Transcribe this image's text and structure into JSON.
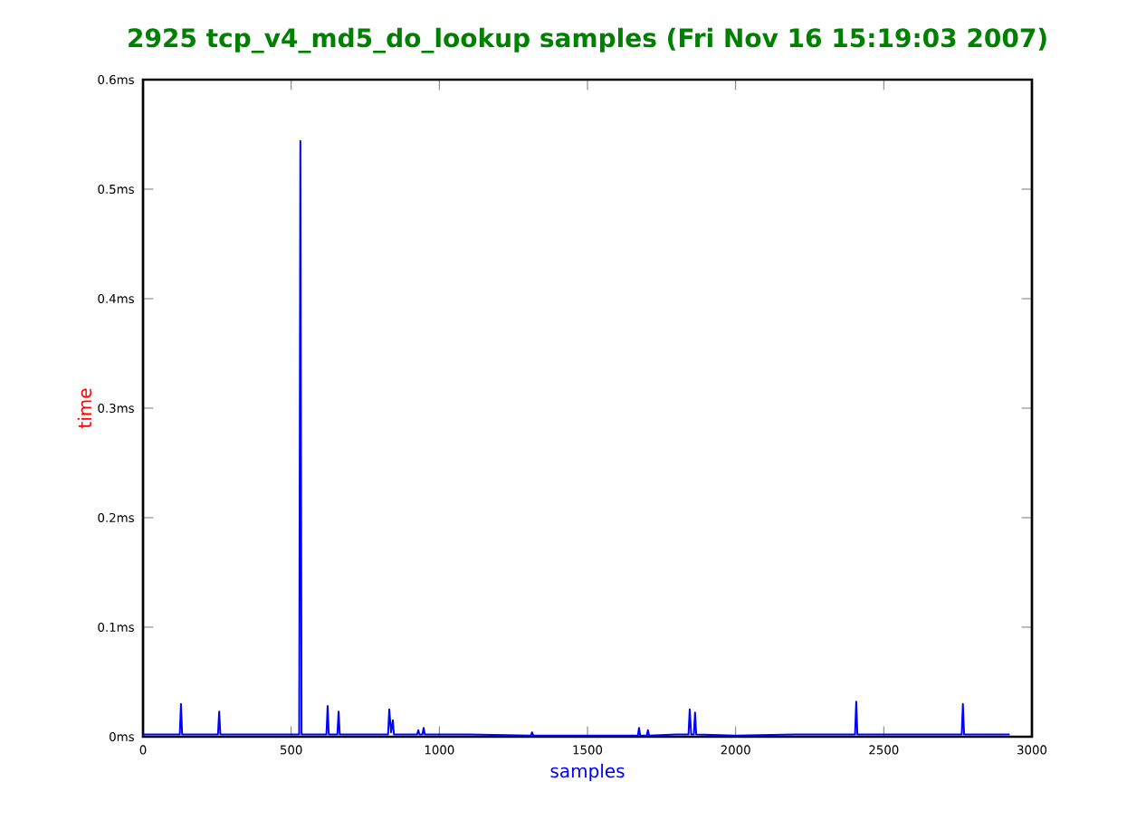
{
  "chart_data": {
    "type": "line",
    "title": "2925 tcp_v4_md5_do_lookup samples (Fri Nov 16 15:19:03 2007)",
    "xlabel": "samples",
    "ylabel": "time",
    "xlim": [
      0,
      3000
    ],
    "xticks": [
      0,
      500,
      1000,
      1500,
      2000,
      2500,
      3000
    ],
    "ylim": [
      0,
      0.6
    ],
    "yticks": [
      {
        "value": 0,
        "label": "0ms"
      },
      {
        "value": 0.1,
        "label": "0.1ms"
      },
      {
        "value": 0.2,
        "label": "0.2ms"
      },
      {
        "value": 0.3,
        "label": "0.3ms"
      },
      {
        "value": 0.4,
        "label": "0.4ms"
      },
      {
        "value": 0.5,
        "label": "0.5ms"
      },
      {
        "value": 0.6,
        "label": "0.6ms"
      }
    ],
    "series": [
      {
        "color": "#0000ff",
        "x": [
          0,
          100,
          124,
          128,
          132,
          200,
          253,
          257,
          261,
          400,
          527,
          531,
          535,
          600,
          619,
          623,
          627,
          656,
          660,
          664,
          780,
          827,
          831,
          837,
          843,
          847,
          900,
          925,
          929,
          933,
          943,
          947,
          951,
          1100,
          1309,
          1313,
          1317,
          1500,
          1670,
          1674,
          1678,
          1700,
          1704,
          1708,
          1800,
          1841,
          1845,
          1850,
          1859,
          1863,
          1867,
          2000,
          2200,
          2403,
          2407,
          2411,
          2600,
          2763,
          2767,
          2771,
          2925
        ],
        "values": [
          0.002,
          0.002,
          0.002,
          0.03,
          0.002,
          0.002,
          0.002,
          0.023,
          0.002,
          0.002,
          0.002,
          0.544,
          0.002,
          0.002,
          0.002,
          0.028,
          0.002,
          0.002,
          0.023,
          0.002,
          0.002,
          0.002,
          0.025,
          0.004,
          0.015,
          0.002,
          0.002,
          0.002,
          0.006,
          0.002,
          0.002,
          0.008,
          0.002,
          0.002,
          0.001,
          0.004,
          0.001,
          0.001,
          0.001,
          0.008,
          0.001,
          0.001,
          0.006,
          0.001,
          0.002,
          0.002,
          0.025,
          0.002,
          0.002,
          0.022,
          0.002,
          0.001,
          0.002,
          0.002,
          0.032,
          0.002,
          0.002,
          0.002,
          0.03,
          0.002,
          0.002
        ]
      }
    ]
  }
}
